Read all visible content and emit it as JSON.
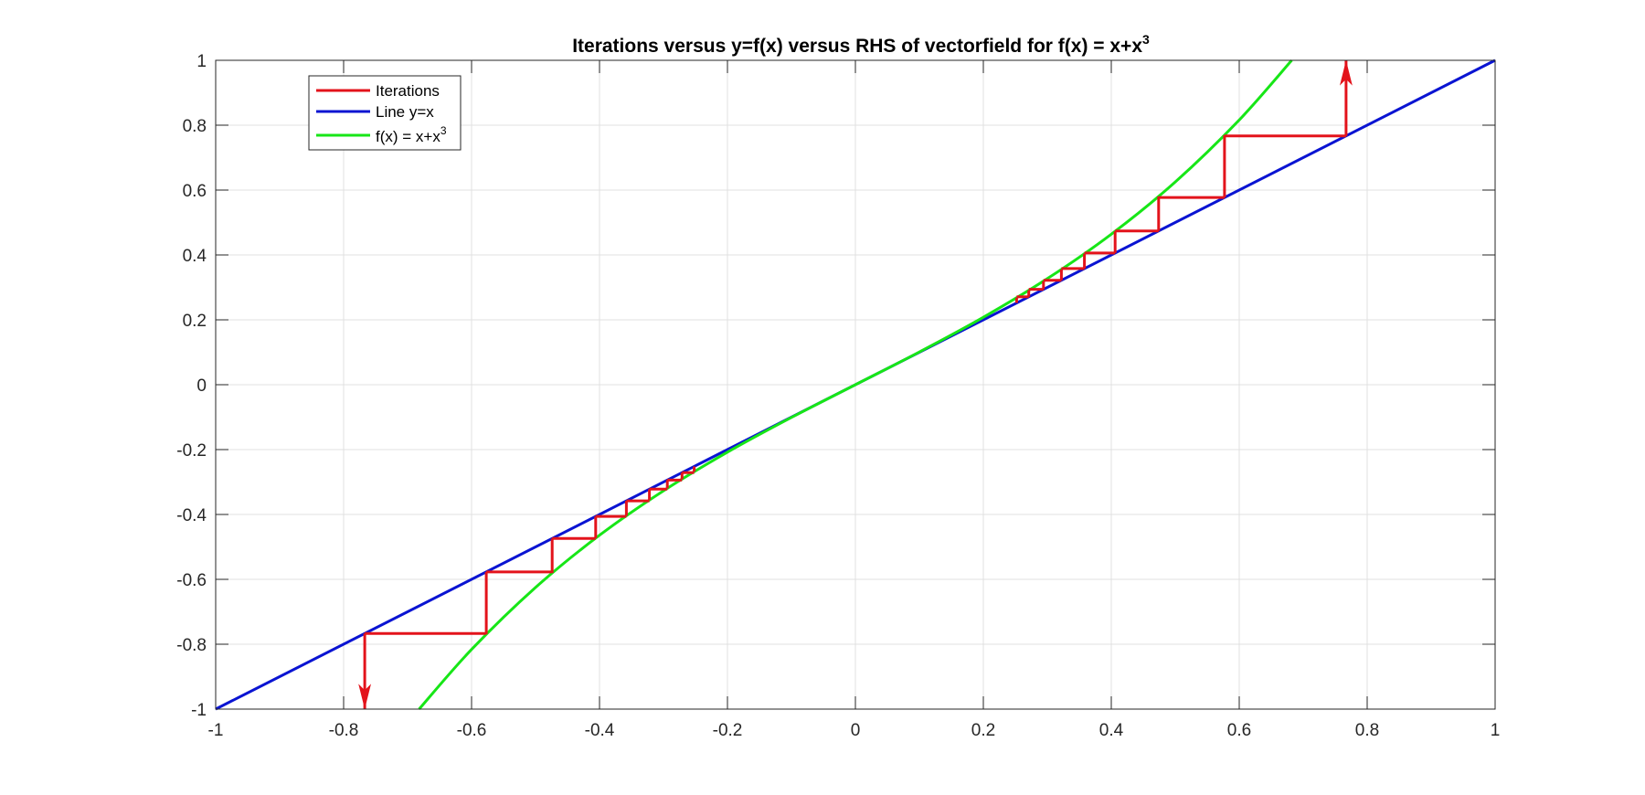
{
  "chart_data": {
    "type": "line",
    "title": {
      "main": "Iterations versus y=f(x) versus RHS of vectorfield for f(x) = x+x",
      "superscript": "3"
    },
    "xlabel": "",
    "ylabel": "",
    "xlim": [
      -1,
      1
    ],
    "ylim": [
      -1,
      1
    ],
    "x_ticks": [
      -1,
      -0.8,
      -0.6,
      -0.4,
      -0.2,
      0,
      0.2,
      0.4,
      0.6,
      0.8,
      1
    ],
    "x_tick_labels": [
      "-1",
      "-0.8",
      "-0.6",
      "-0.4",
      "-0.2",
      "0",
      "0.2",
      "0.4",
      "0.6",
      "0.8",
      "1"
    ],
    "y_ticks": [
      1,
      0.8,
      0.6,
      0.4,
      0.2,
      0,
      -0.2,
      -0.4,
      -0.6,
      -0.8,
      -1
    ],
    "y_tick_labels": [
      "1",
      "0.8",
      "0.6",
      "0.4",
      "0.2",
      "0",
      "-0.2",
      "-0.4",
      "-0.6",
      "-0.8",
      "-1"
    ],
    "grid": true,
    "legend_position": "top-left",
    "series": [
      {
        "name": "Iterations",
        "color": "#e3131b",
        "style": "staircase",
        "branches": [
          {
            "direction": "up",
            "x": [
              0.767,
              0.577,
              0.474,
              0.406,
              0.358,
              0.322,
              0.294,
              0.271,
              0.252
            ],
            "end_y": 1
          },
          {
            "direction": "down",
            "x": [
              -0.767,
              -0.577,
              -0.474,
              -0.406,
              -0.358,
              -0.322,
              -0.294,
              -0.271,
              -0.252
            ],
            "end_y": -1
          }
        ]
      },
      {
        "name": "Line y=x",
        "color": "#0a14d2",
        "x": [
          -1,
          1
        ],
        "y": [
          -1,
          1
        ]
      },
      {
        "name_main": "f(x) = x+x",
        "name_superscript": "3",
        "color": "#17e617",
        "x": [
          -0.682,
          -0.6,
          -0.5,
          -0.4,
          -0.3,
          -0.2,
          -0.1,
          0,
          0.1,
          0.2,
          0.3,
          0.4,
          0.5,
          0.6,
          0.682
        ],
        "y": [
          -1.0,
          -0.816,
          -0.625,
          -0.464,
          -0.327,
          -0.208,
          -0.101,
          0,
          0.101,
          0.208,
          0.327,
          0.464,
          0.625,
          0.816,
          1.0
        ]
      }
    ]
  },
  "colors": {
    "iterations": "#e3131b",
    "line": "#0a14d2",
    "curve": "#17e617",
    "grid": "#e0e0e0",
    "axis": "#262626"
  }
}
